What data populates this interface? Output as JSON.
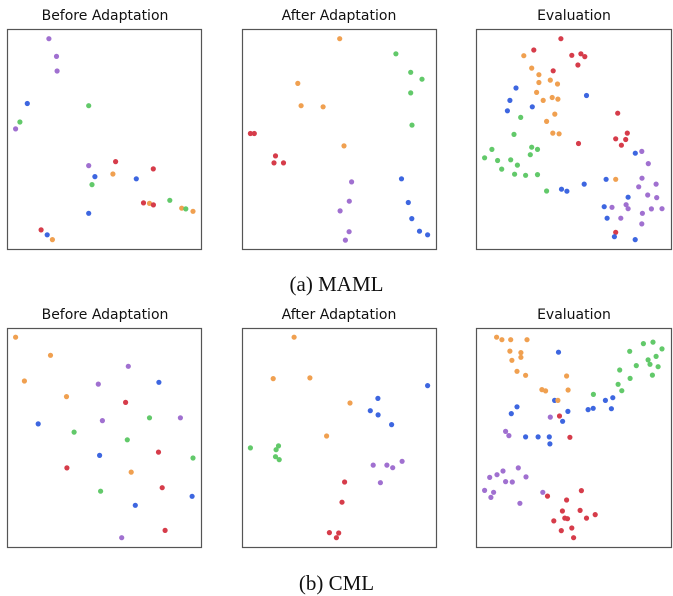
{
  "colors": {
    "orange": "#f0a050",
    "red": "#d63c4a",
    "green": "#62c96a",
    "blue": "#3d66e0",
    "purple": "#a070d0"
  },
  "chart_data": [
    {
      "type": "scatter",
      "group": "(a) MAML",
      "title": "Before Adaptation",
      "xlim": [
        0,
        100
      ],
      "ylim": [
        0,
        100
      ],
      "grid": false,
      "points": [
        [
          21.5,
          95.6,
          "purple"
        ],
        [
          25.4,
          87.6,
          "purple"
        ],
        [
          25.7,
          81.0,
          "purple"
        ],
        [
          10.4,
          66.3,
          "blue"
        ],
        [
          41.9,
          65.3,
          "green"
        ],
        [
          6.6,
          57.9,
          "green"
        ],
        [
          4.4,
          54.8,
          "purple"
        ],
        [
          55.7,
          40.0,
          "red"
        ],
        [
          41.9,
          38.2,
          "purple"
        ],
        [
          75.0,
          36.7,
          "red"
        ],
        [
          54.3,
          34.4,
          "orange"
        ],
        [
          45.1,
          33.2,
          "blue"
        ],
        [
          66.3,
          32.2,
          "blue"
        ],
        [
          43.6,
          29.6,
          "green"
        ],
        [
          83.5,
          22.5,
          "green"
        ],
        [
          70.0,
          21.3,
          "red"
        ],
        [
          73.1,
          21.1,
          "orange"
        ],
        [
          75.1,
          20.4,
          "red"
        ],
        [
          89.6,
          18.9,
          "orange"
        ],
        [
          91.7,
          18.6,
          "green"
        ],
        [
          95.4,
          17.5,
          "orange"
        ],
        [
          41.9,
          16.6,
          "blue"
        ],
        [
          17.5,
          9.1,
          "red"
        ],
        [
          20.6,
          6.9,
          "blue"
        ],
        [
          23.3,
          4.7,
          "orange"
        ]
      ]
    },
    {
      "type": "scatter",
      "group": "(a) MAML",
      "title": "After Adaptation",
      "xlim": [
        0,
        100
      ],
      "ylim": [
        0,
        100
      ],
      "grid": false,
      "points": [
        [
          50.1,
          95.6,
          "orange"
        ],
        [
          78.9,
          88.8,
          "green"
        ],
        [
          86.5,
          80.4,
          "green"
        ],
        [
          92.3,
          77.3,
          "green"
        ],
        [
          86.5,
          71.1,
          "green"
        ],
        [
          28.6,
          75.4,
          "orange"
        ],
        [
          30.3,
          65.3,
          "orange"
        ],
        [
          41.6,
          64.8,
          "orange"
        ],
        [
          87.2,
          56.5,
          "green"
        ],
        [
          4.3,
          52.7,
          "red"
        ],
        [
          6.3,
          52.7,
          "red"
        ],
        [
          52.3,
          47.1,
          "orange"
        ],
        [
          17.2,
          42.6,
          "red"
        ],
        [
          16.4,
          39.4,
          "red"
        ],
        [
          21.3,
          39.4,
          "red"
        ],
        [
          81.8,
          32.2,
          "blue"
        ],
        [
          56.2,
          30.8,
          "purple"
        ],
        [
          55.0,
          22.1,
          "purple"
        ],
        [
          85.3,
          21.5,
          "blue"
        ],
        [
          50.3,
          17.7,
          "purple"
        ],
        [
          87.1,
          14.2,
          "blue"
        ],
        [
          54.9,
          8.3,
          "purple"
        ],
        [
          91.0,
          8.5,
          "blue"
        ],
        [
          95.2,
          6.9,
          "blue"
        ],
        [
          53.0,
          4.5,
          "purple"
        ]
      ]
    },
    {
      "type": "scatter",
      "group": "(a) MAML",
      "title": "Evaluation",
      "xlim": [
        0,
        100
      ],
      "ylim": [
        0,
        100
      ],
      "grid": false,
      "points": [
        [
          43.3,
          95.6,
          "red"
        ],
        [
          29.5,
          90.5,
          "red"
        ],
        [
          24.4,
          87.9,
          "orange"
        ],
        [
          48.9,
          88.1,
          "red"
        ],
        [
          53.5,
          88.8,
          "red"
        ],
        [
          55.5,
          87.5,
          "red"
        ],
        [
          52.0,
          83.7,
          "red"
        ],
        [
          28.4,
          82.3,
          "orange"
        ],
        [
          39.4,
          81.1,
          "red"
        ],
        [
          32.1,
          79.3,
          "orange"
        ],
        [
          37.9,
          76.9,
          "orange"
        ],
        [
          32.1,
          75.8,
          "orange"
        ],
        [
          41.6,
          75.1,
          "orange"
        ],
        [
          20.4,
          73.3,
          "blue"
        ],
        [
          30.9,
          71.3,
          "orange"
        ],
        [
          38.9,
          69.0,
          "orange"
        ],
        [
          41.8,
          68.3,
          "orange"
        ],
        [
          34.3,
          67.7,
          "orange"
        ],
        [
          17.3,
          67.7,
          "blue"
        ],
        [
          56.4,
          69.9,
          "blue"
        ],
        [
          28.7,
          64.8,
          "blue"
        ],
        [
          16.0,
          63.0,
          "blue"
        ],
        [
          72.3,
          61.9,
          "red"
        ],
        [
          40.2,
          61.5,
          "orange"
        ],
        [
          22.8,
          60.0,
          "green"
        ],
        [
          36.0,
          58.2,
          "orange"
        ],
        [
          19.4,
          52.3,
          "green"
        ],
        [
          39.2,
          52.9,
          "orange"
        ],
        [
          42.4,
          52.6,
          "orange"
        ],
        [
          77.2,
          52.9,
          "red"
        ],
        [
          71.3,
          50.3,
          "red"
        ],
        [
          76.4,
          50.0,
          "red"
        ],
        [
          52.3,
          48.2,
          "red"
        ],
        [
          74.2,
          47.4,
          "red"
        ],
        [
          8.1,
          45.5,
          "green"
        ],
        [
          28.4,
          46.5,
          "green"
        ],
        [
          31.4,
          45.5,
          "green"
        ],
        [
          27.7,
          43.1,
          "green"
        ],
        [
          81.3,
          43.8,
          "blue"
        ],
        [
          84.6,
          44.6,
          "purple"
        ],
        [
          4.4,
          41.7,
          "green"
        ],
        [
          11.0,
          40.5,
          "green"
        ],
        [
          17.7,
          40.8,
          "green"
        ],
        [
          21.1,
          38.4,
          "green"
        ],
        [
          87.9,
          39.1,
          "purple"
        ],
        [
          13.1,
          36.6,
          "green"
        ],
        [
          19.7,
          34.3,
          "green"
        ],
        [
          25.3,
          33.8,
          "green"
        ],
        [
          31.4,
          34.1,
          "green"
        ],
        [
          84.7,
          32.5,
          "purple"
        ],
        [
          66.4,
          32.0,
          "blue"
        ],
        [
          71.3,
          32.0,
          "orange"
        ],
        [
          55.2,
          29.8,
          "blue"
        ],
        [
          91.9,
          29.8,
          "purple"
        ],
        [
          83.0,
          28.6,
          "purple"
        ],
        [
          36.0,
          26.7,
          "green"
        ],
        [
          43.6,
          27.5,
          "blue"
        ],
        [
          46.4,
          26.6,
          "blue"
        ],
        [
          87.6,
          24.9,
          "purple"
        ],
        [
          77.6,
          23.9,
          "blue"
        ],
        [
          92.2,
          23.7,
          "purple"
        ],
        [
          76.6,
          20.5,
          "purple"
        ],
        [
          65.4,
          19.6,
          "blue"
        ],
        [
          69.4,
          19.3,
          "purple"
        ],
        [
          77.6,
          18.7,
          "purple"
        ],
        [
          89.5,
          18.6,
          "purple"
        ],
        [
          94.9,
          18.7,
          "purple"
        ],
        [
          84.9,
          16.6,
          "purple"
        ],
        [
          66.9,
          14.4,
          "blue"
        ],
        [
          73.9,
          14.4,
          "purple"
        ],
        [
          84.6,
          11.8,
          "purple"
        ],
        [
          71.3,
          8.0,
          "red"
        ],
        [
          70.6,
          6.0,
          "blue"
        ],
        [
          81.2,
          4.7,
          "blue"
        ]
      ]
    },
    {
      "type": "scatter",
      "group": "(b) CML",
      "title": "Before Adaptation",
      "xlim": [
        0,
        100
      ],
      "ylim": [
        0,
        100
      ],
      "grid": false,
      "points": [
        [
          4.4,
          95.8,
          "orange"
        ],
        [
          22.3,
          87.6,
          "orange"
        ],
        [
          62.2,
          82.6,
          "purple"
        ],
        [
          8.9,
          75.9,
          "orange"
        ],
        [
          46.8,
          74.5,
          "purple"
        ],
        [
          77.9,
          75.3,
          "blue"
        ],
        [
          30.5,
          68.8,
          "orange"
        ],
        [
          60.8,
          66.2,
          "red"
        ],
        [
          73.1,
          59.2,
          "green"
        ],
        [
          88.9,
          59.2,
          "purple"
        ],
        [
          16.0,
          56.4,
          "blue"
        ],
        [
          48.9,
          57.9,
          "purple"
        ],
        [
          34.4,
          52.7,
          "green"
        ],
        [
          61.7,
          49.2,
          "green"
        ],
        [
          47.5,
          42.1,
          "blue"
        ],
        [
          77.7,
          43.6,
          "red"
        ],
        [
          95.4,
          40.9,
          "green"
        ],
        [
          30.7,
          36.4,
          "red"
        ],
        [
          63.7,
          34.5,
          "orange"
        ],
        [
          48.0,
          25.8,
          "green"
        ],
        [
          79.6,
          27.4,
          "red"
        ],
        [
          94.9,
          23.5,
          "blue"
        ],
        [
          65.8,
          19.4,
          "blue"
        ],
        [
          81.1,
          8.0,
          "red"
        ],
        [
          58.8,
          4.7,
          "purple"
        ]
      ]
    },
    {
      "type": "scatter",
      "group": "(b) CML",
      "title": "After Adaptation",
      "xlim": [
        0,
        100
      ],
      "ylim": [
        0,
        100
      ],
      "grid": false,
      "points": [
        [
          26.7,
          95.8,
          "orange"
        ],
        [
          16.0,
          77.0,
          "orange"
        ],
        [
          34.8,
          77.3,
          "orange"
        ],
        [
          95.2,
          73.8,
          "blue"
        ],
        [
          69.7,
          68.0,
          "blue"
        ],
        [
          55.4,
          65.9,
          "orange"
        ],
        [
          65.8,
          62.4,
          "blue"
        ],
        [
          69.8,
          60.5,
          "blue"
        ],
        [
          76.7,
          56.1,
          "blue"
        ],
        [
          43.4,
          50.9,
          "orange"
        ],
        [
          4.3,
          45.5,
          "green"
        ],
        [
          18.7,
          46.4,
          "green"
        ],
        [
          17.5,
          44.7,
          "green"
        ],
        [
          17.2,
          41.5,
          "green"
        ],
        [
          19.1,
          40.2,
          "green"
        ],
        [
          82.1,
          39.4,
          "purple"
        ],
        [
          67.3,
          37.7,
          "purple"
        ],
        [
          74.3,
          37.7,
          "purple"
        ],
        [
          77.3,
          36.5,
          "purple"
        ],
        [
          52.6,
          30.0,
          "red"
        ],
        [
          71.0,
          29.7,
          "purple"
        ],
        [
          51.3,
          20.8,
          "red"
        ],
        [
          44.8,
          7.0,
          "red"
        ],
        [
          49.6,
          6.8,
          "red"
        ],
        [
          48.4,
          4.7,
          "red"
        ]
      ]
    },
    {
      "type": "scatter",
      "group": "(b) CML",
      "title": "Evaluation",
      "xlim": [
        0,
        100
      ],
      "ylim": [
        0,
        100
      ],
      "grid": false,
      "points": [
        [
          10.5,
          95.8,
          "orange"
        ],
        [
          13.2,
          94.7,
          "orange"
        ],
        [
          17.7,
          94.7,
          "orange"
        ],
        [
          26.0,
          94.7,
          "orange"
        ],
        [
          85.4,
          92.9,
          "green"
        ],
        [
          90.3,
          93.6,
          "green"
        ],
        [
          94.9,
          90.5,
          "green"
        ],
        [
          42.1,
          89.0,
          "blue"
        ],
        [
          17.3,
          89.5,
          "orange"
        ],
        [
          22.9,
          88.8,
          "orange"
        ],
        [
          22.9,
          86.7,
          "orange"
        ],
        [
          18.3,
          85.3,
          "orange"
        ],
        [
          78.4,
          89.4,
          "green"
        ],
        [
          91.9,
          87.1,
          "green"
        ],
        [
          87.8,
          85.5,
          "green"
        ],
        [
          88.8,
          83.5,
          "green"
        ],
        [
          81.8,
          82.9,
          "green"
        ],
        [
          92.9,
          82.4,
          "green"
        ],
        [
          73.3,
          80.9,
          "green"
        ],
        [
          20.9,
          80.3,
          "orange"
        ],
        [
          25.3,
          78.5,
          "orange"
        ],
        [
          46.2,
          78.2,
          "orange"
        ],
        [
          90.0,
          78.6,
          "green"
        ],
        [
          78.6,
          77.1,
          "green"
        ],
        [
          72.5,
          74.4,
          "green"
        ],
        [
          33.6,
          72.0,
          "orange"
        ],
        [
          35.5,
          71.4,
          "orange"
        ],
        [
          47.0,
          71.8,
          "orange"
        ],
        [
          74.4,
          71.5,
          "green"
        ],
        [
          59.9,
          69.8,
          "green"
        ],
        [
          40.1,
          67.1,
          "blue"
        ],
        [
          41.8,
          67.1,
          "orange"
        ],
        [
          66.0,
          67.1,
          "blue"
        ],
        [
          69.8,
          68.3,
          "blue"
        ],
        [
          20.9,
          64.2,
          "blue"
        ],
        [
          57.2,
          62.9,
          "blue"
        ],
        [
          59.8,
          63.5,
          "blue"
        ],
        [
          69.1,
          63.3,
          "blue"
        ],
        [
          46.9,
          62.1,
          "blue"
        ],
        [
          18.0,
          61.1,
          "blue"
        ],
        [
          37.9,
          59.5,
          "purple"
        ],
        [
          42.6,
          60.0,
          "red"
        ],
        [
          44.2,
          57.6,
          "blue"
        ],
        [
          15.1,
          53.0,
          "purple"
        ],
        [
          16.8,
          51.1,
          "purple"
        ],
        [
          25.3,
          50.5,
          "blue"
        ],
        [
          31.7,
          50.5,
          "blue"
        ],
        [
          37.4,
          50.5,
          "blue"
        ],
        [
          47.9,
          50.3,
          "red"
        ],
        [
          37.7,
          47.3,
          "blue"
        ],
        [
          21.6,
          36.4,
          "purple"
        ],
        [
          13.8,
          35.0,
          "purple"
        ],
        [
          10.7,
          33.3,
          "purple"
        ],
        [
          7.0,
          32.1,
          "purple"
        ],
        [
          25.5,
          32.3,
          "purple"
        ],
        [
          15.1,
          30.2,
          "purple"
        ],
        [
          18.5,
          30.0,
          "purple"
        ],
        [
          53.8,
          26.1,
          "red"
        ],
        [
          4.4,
          26.2,
          "purple"
        ],
        [
          9.0,
          25.3,
          "purple"
        ],
        [
          34.1,
          25.3,
          "purple"
        ],
        [
          36.5,
          23.6,
          "red"
        ],
        [
          7.6,
          23.0,
          "purple"
        ],
        [
          46.2,
          21.8,
          "red"
        ],
        [
          22.4,
          20.3,
          "purple"
        ],
        [
          53.1,
          17.1,
          "red"
        ],
        [
          44.1,
          16.8,
          "red"
        ],
        [
          60.8,
          15.2,
          "red"
        ],
        [
          45.3,
          13.6,
          "red"
        ],
        [
          46.7,
          13.3,
          "red"
        ],
        [
          56.4,
          13.6,
          "red"
        ],
        [
          39.7,
          12.3,
          "red"
        ],
        [
          48.9,
          9.1,
          "red"
        ],
        [
          43.5,
          7.9,
          "red"
        ],
        [
          49.8,
          4.7,
          "red"
        ]
      ]
    }
  ],
  "captions": [
    "(a) MAML",
    "(b) CML"
  ]
}
